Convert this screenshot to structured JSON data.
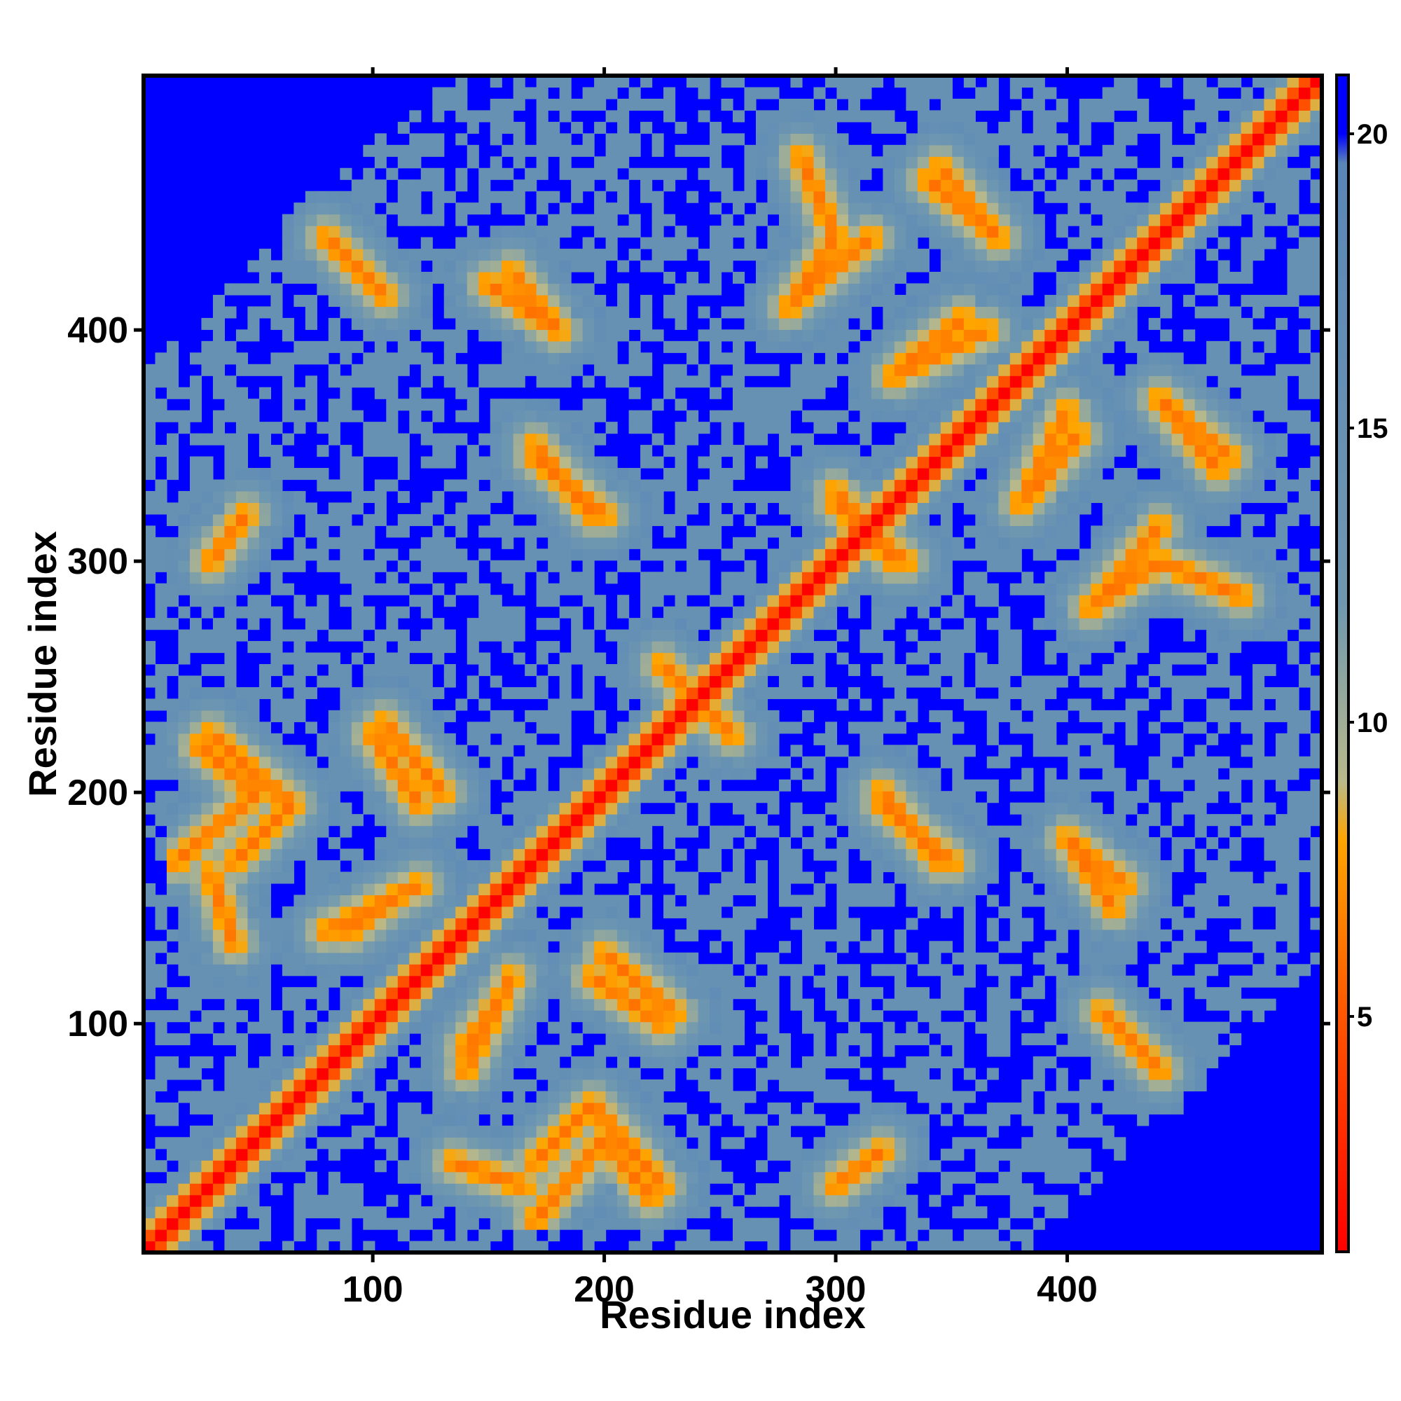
{
  "chart_data": {
    "type": "heatmap",
    "title": "",
    "xlabel": "Residue index",
    "ylabel": "Residue index",
    "xlim": [
      1,
      510
    ],
    "ylim": [
      1,
      510
    ],
    "x_ticks": [
      {
        "value": 100,
        "label": "100"
      },
      {
        "value": 200,
        "label": "200"
      },
      {
        "value": 300,
        "label": "300"
      },
      {
        "value": 400,
        "label": "400"
      }
    ],
    "y_ticks": [
      {
        "value": 100,
        "label": "100"
      },
      {
        "value": 200,
        "label": "200"
      },
      {
        "value": 300,
        "label": "300"
      },
      {
        "value": 400,
        "label": "400"
      }
    ],
    "colorbar": {
      "range": [
        1,
        21
      ],
      "ticks": [
        {
          "value": 5,
          "label": "5"
        },
        {
          "value": 10,
          "label": "10"
        },
        {
          "value": 15,
          "label": "15"
        },
        {
          "value": 20,
          "label": "20"
        }
      ],
      "stops": [
        {
          "value": 1,
          "color": "#ff0000"
        },
        {
          "value": 5,
          "color": "#ff5500"
        },
        {
          "value": 8,
          "color": "#ffa500"
        },
        {
          "value": 9,
          "color": "#b9b98a"
        },
        {
          "value": 12,
          "color": "#6f98b0"
        },
        {
          "value": 19.5,
          "color": "#5a86b8"
        },
        {
          "value": 20,
          "color": "#0000ff"
        },
        {
          "value": 21,
          "color": "#0000ff"
        }
      ]
    },
    "background_value": 21,
    "grid": false,
    "description_values": {
      "diagonal_distance": 1,
      "near_diagonal_band_width_residues": 8
    },
    "contact_features": [
      {
        "type": "antidiagonal",
        "from": [
          15,
          170
        ],
        "to": [
          50,
          200
        ]
      },
      {
        "type": "antidiagonal",
        "from": [
          25,
          220
        ],
        "to": [
          50,
          200
        ]
      },
      {
        "type": "antidiagonal",
        "from": [
          80,
          140
        ],
        "to": [
          120,
          160
        ]
      },
      {
        "type": "antidiagonal",
        "from": [
          140,
          90
        ],
        "to": [
          155,
          110
        ]
      },
      {
        "type": "antidiagonal",
        "from": [
          105,
          230
        ],
        "to": [
          130,
          200
        ]
      },
      {
        "type": "antidiagonal",
        "from": [
          170,
          40
        ],
        "to": [
          195,
          65
        ]
      },
      {
        "type": "antidiagonal",
        "from": [
          195,
          65
        ],
        "to": [
          225,
          30
        ]
      },
      {
        "type": "antidiagonal",
        "from": [
          135,
          40
        ],
        "to": [
          165,
          30
        ]
      },
      {
        "type": "antidiagonal",
        "from": [
          195,
          120
        ],
        "to": [
          225,
          100
        ]
      },
      {
        "type": "antidiagonal",
        "from": [
          80,
          440
        ],
        "to": [
          105,
          415
        ]
      },
      {
        "type": "antidiagonal",
        "from": [
          150,
          420
        ],
        "to": [
          180,
          400
        ]
      },
      {
        "type": "antidiagonal",
        "from": [
          170,
          350
        ],
        "to": [
          195,
          320
        ]
      },
      {
        "type": "antidiagonal",
        "from": [
          285,
          415
        ],
        "to": [
          315,
          440
        ]
      },
      {
        "type": "antidiagonal",
        "from": [
          340,
          465
        ],
        "to": [
          370,
          440
        ]
      },
      {
        "type": "antidiagonal",
        "from": [
          325,
          380
        ],
        "to": [
          365,
          400
        ]
      },
      {
        "type": "antidiagonal",
        "from": [
          385,
          330
        ],
        "to": [
          405,
          355
        ]
      },
      {
        "type": "antidiagonal",
        "from": [
          440,
          370
        ],
        "to": [
          470,
          345
        ]
      },
      {
        "type": "antidiagonal",
        "from": [
          410,
          280
        ],
        "to": [
          440,
          300
        ]
      },
      {
        "type": "antidiagonal",
        "from": [
          440,
          300
        ],
        "to": [
          475,
          285
        ]
      },
      {
        "type": "antidiagonal",
        "from": [
          320,
          200
        ],
        "to": [
          345,
          170
        ]
      },
      {
        "type": "antidiagonal",
        "from": [
          400,
          180
        ],
        "to": [
          425,
          160
        ]
      },
      {
        "type": "antidiagonal",
        "from": [
          415,
          105
        ],
        "to": [
          440,
          80
        ]
      },
      {
        "type": "antidiagonal",
        "from": [
          30,
          300
        ],
        "to": [
          45,
          320
        ]
      },
      {
        "type": "antidiagonal",
        "from": [
          225,
          255
        ],
        "to": [
          255,
          225
        ]
      },
      {
        "type": "antidiagonal",
        "from": [
          300,
          325
        ],
        "to": [
          330,
          300
        ]
      }
    ]
  }
}
